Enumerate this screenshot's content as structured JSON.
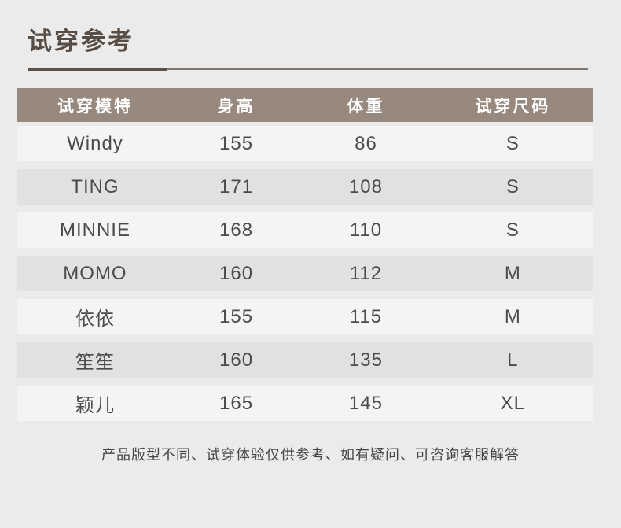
{
  "header": {
    "title": "试穿参考"
  },
  "table": {
    "columns": [
      "试穿模特",
      "身高",
      "体重",
      "试穿尺码"
    ],
    "rows": [
      {
        "model": "Windy",
        "height": "155",
        "weight": "86",
        "size": "S"
      },
      {
        "model": "TING",
        "height": "171",
        "weight": "108",
        "size": "S"
      },
      {
        "model": "MINNIE",
        "height": "168",
        "weight": "110",
        "size": "S"
      },
      {
        "model": "MOMO",
        "height": "160",
        "weight": "112",
        "size": "M"
      },
      {
        "model": "依依",
        "height": "155",
        "weight": "115",
        "size": "M"
      },
      {
        "model": "笙笙",
        "height": "160",
        "weight": "135",
        "size": "L"
      },
      {
        "model": "颖儿",
        "height": "165",
        "weight": "145",
        "size": "XL"
      }
    ]
  },
  "footer": {
    "note": "产品版型不同、试穿体验仅供参考、如有疑问、可咨询客服解答"
  },
  "colors": {
    "page_background": "#ebebeb",
    "header_row_background": "#97897e",
    "header_row_text": "#ffffff",
    "row_light": "#f4f4f4",
    "row_shade": "#e1e1e1",
    "cell_text": "#4b4b4d",
    "title_text": "#574c43",
    "underline_accent": "#5c5148",
    "underline_thin": "#80776e"
  }
}
